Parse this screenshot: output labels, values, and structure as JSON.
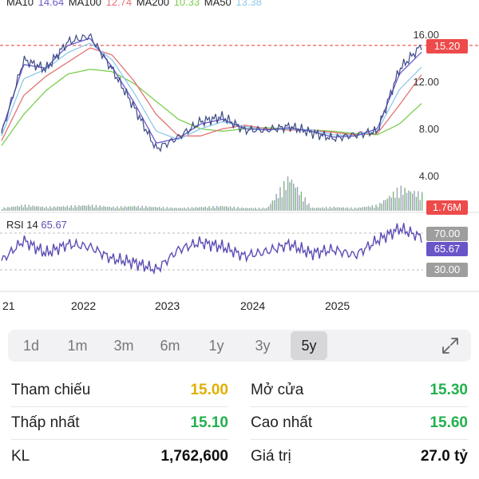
{
  "legend": {
    "ma10_label": "MA10",
    "ma10_value": "14.64",
    "ma100_label": "MA100",
    "ma100_value": "12.74",
    "ma200_label": "MA200",
    "ma200_value": "10.33",
    "ma50_label": "MA50",
    "ma50_value": "13.38"
  },
  "colors": {
    "ma10": "#6a5acd",
    "ma100": "#e57373",
    "ma200": "#7ccd4f",
    "ma50": "#8ec9ea",
    "price": "#3d4a87",
    "volume": "#9aa4b4",
    "volume_up": "#7ab87a",
    "rsi": "#5b4db5",
    "up": "#22b14c",
    "down": "#e53935",
    "ref": "#e0b000"
  },
  "price_axis": {
    "labels": [
      "16.00",
      "12.00",
      "8.00",
      "4.00"
    ]
  },
  "price_tag": "15.20",
  "volume_tag": "1.76M",
  "rsi": {
    "label": "RSI 14",
    "value": "65.67",
    "levels": {
      "upper": "70.00",
      "current": "65.67",
      "lower": "30.00"
    }
  },
  "x_axis": [
    "21",
    "2022",
    "2023",
    "2024",
    "2025"
  ],
  "chart_data": {
    "type": "line",
    "x": [
      "2021-01",
      "2021-04",
      "2021-07",
      "2021-10",
      "2022-01",
      "2022-04",
      "2022-07",
      "2022-10",
      "2023-01",
      "2023-04",
      "2023-07",
      "2023-10",
      "2024-01",
      "2024-04",
      "2024-07",
      "2024-10",
      "2025-01",
      "2025-04",
      "2025-07",
      "2025-10"
    ],
    "series": [
      {
        "name": "Price",
        "values": [
          7.8,
          14.0,
          13.2,
          15.5,
          16.0,
          13.2,
          10.0,
          6.5,
          7.5,
          8.8,
          9.2,
          8.1,
          8.1,
          8.4,
          7.9,
          7.4,
          7.7,
          8.0,
          13.2,
          15.2
        ]
      },
      {
        "name": "MA10",
        "values": [
          8.0,
          13.6,
          13.3,
          15.2,
          15.8,
          13.4,
          10.4,
          7.0,
          7.4,
          8.6,
          9.0,
          8.2,
          8.1,
          8.3,
          8.0,
          7.5,
          7.6,
          8.2,
          12.8,
          14.64
        ]
      },
      {
        "name": "MA50",
        "values": [
          7.6,
          12.4,
          13.2,
          14.6,
          15.4,
          14.0,
          11.2,
          8.0,
          7.3,
          8.2,
          8.8,
          8.4,
          8.1,
          8.2,
          8.1,
          7.7,
          7.6,
          8.0,
          11.5,
          13.38
        ]
      },
      {
        "name": "MA100",
        "values": [
          7.2,
          11.0,
          12.6,
          13.8,
          15.0,
          14.4,
          12.2,
          9.4,
          7.6,
          7.6,
          8.2,
          8.5,
          8.2,
          8.1,
          8.1,
          7.9,
          7.7,
          7.8,
          10.2,
          12.74
        ]
      },
      {
        "name": "MA200",
        "values": [
          6.8,
          9.4,
          11.4,
          12.8,
          13.2,
          13.0,
          12.0,
          10.5,
          9.0,
          8.2,
          8.0,
          8.2,
          8.3,
          8.2,
          8.1,
          8.0,
          7.8,
          7.7,
          8.6,
          10.33
        ]
      }
    ],
    "ylim": [
      0,
      17
    ],
    "reference_line": 15.2,
    "volume": [
      0.3,
      0.6,
      0.4,
      0.5,
      0.6,
      0.4,
      0.5,
      0.4,
      0.3,
      0.4,
      0.5,
      0.3,
      0.3,
      3.6,
      0.3,
      0.4,
      0.3,
      0.6,
      2.4,
      1.76
    ],
    "rsi": [
      40,
      62,
      48,
      58,
      55,
      42,
      38,
      30,
      52,
      60,
      55,
      45,
      50,
      58,
      48,
      52,
      46,
      62,
      75,
      65.67
    ],
    "rsi_levels": [
      30,
      70
    ]
  },
  "ranges": [
    "1d",
    "1m",
    "3m",
    "6m",
    "1y",
    "3y",
    "5y"
  ],
  "active_range": "5y",
  "stats": {
    "ref_label": "Tham chiếu",
    "ref_value": "15.00",
    "open_label": "Mở cửa",
    "open_value": "15.30",
    "low_label": "Thấp nhất",
    "low_value": "15.10",
    "high_label": "Cao nhất",
    "high_value": "15.60",
    "vol_label": "KL",
    "vol_value": "1,762,600",
    "val_label": "Giá trị",
    "val_value": "27.0 tỷ"
  }
}
